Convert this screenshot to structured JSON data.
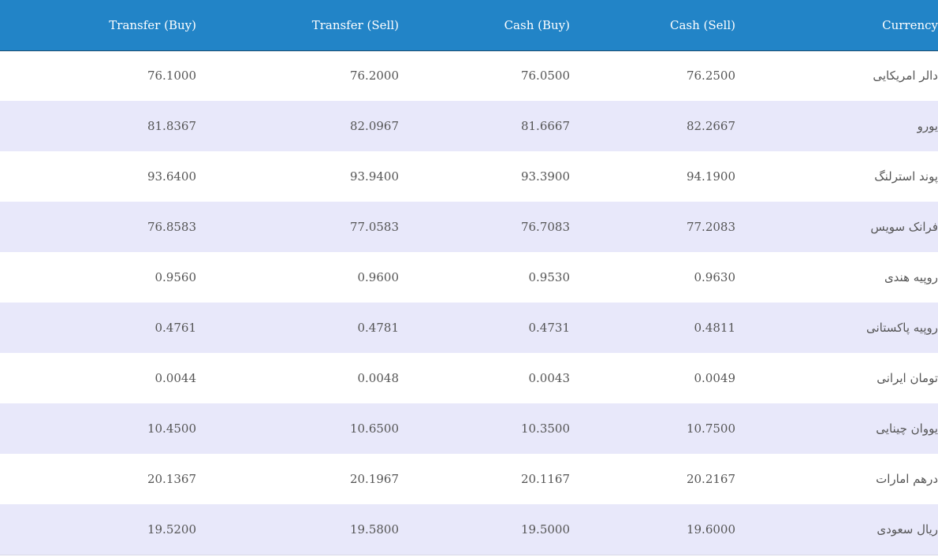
{
  "header": {
    "transfer_buy": "Transfer (Buy)",
    "transfer_sell": "Transfer (Sell)",
    "cash_buy": "Cash (Buy)",
    "cash_sell": "Cash (Sell)",
    "currency": "Currency"
  },
  "rows": [
    {
      "transfer_buy": "76.1000",
      "transfer_sell": "76.2000",
      "cash_buy": "76.0500",
      "cash_sell": "76.2500",
      "currency": "دالر امریکایی"
    },
    {
      "transfer_buy": "81.8367",
      "transfer_sell": "82.0967",
      "cash_buy": "81.6667",
      "cash_sell": "82.2667",
      "currency": "یورو"
    },
    {
      "transfer_buy": "93.6400",
      "transfer_sell": "93.9400",
      "cash_buy": "93.3900",
      "cash_sell": "94.1900",
      "currency": "پوند استرلنگ"
    },
    {
      "transfer_buy": "76.8583",
      "transfer_sell": "77.0583",
      "cash_buy": "76.7083",
      "cash_sell": "77.2083",
      "currency": "فرانک سویس"
    },
    {
      "transfer_buy": "0.9560",
      "transfer_sell": "0.9600",
      "cash_buy": "0.9530",
      "cash_sell": "0.9630",
      "currency": "روپیه هندی"
    },
    {
      "transfer_buy": "0.4761",
      "transfer_sell": "0.4781",
      "cash_buy": "0.4731",
      "cash_sell": "0.4811",
      "currency": "روپیه پاکستانی"
    },
    {
      "transfer_buy": "0.0044",
      "transfer_sell": "0.0048",
      "cash_buy": "0.0043",
      "cash_sell": "0.0049",
      "currency": "تومان ایرانی"
    },
    {
      "transfer_buy": "10.4500",
      "transfer_sell": "10.6500",
      "cash_buy": "10.3500",
      "cash_sell": "10.7500",
      "currency": "یووان چینایی"
    },
    {
      "transfer_buy": "20.1367",
      "transfer_sell": "20.1967",
      "cash_buy": "20.1167",
      "cash_sell": "20.2167",
      "currency": "درهم امارات"
    },
    {
      "transfer_buy": "19.5200",
      "transfer_sell": "19.5800",
      "cash_buy": "19.5000",
      "cash_sell": "19.6000",
      "currency": "ریال سعودی"
    }
  ],
  "colors": {
    "header_bg": "#2284c7",
    "header_text": "#ffffff",
    "row_alt_bg": "#e8e8fa",
    "row_bg": "#ffffff",
    "cell_text": "#555555"
  }
}
